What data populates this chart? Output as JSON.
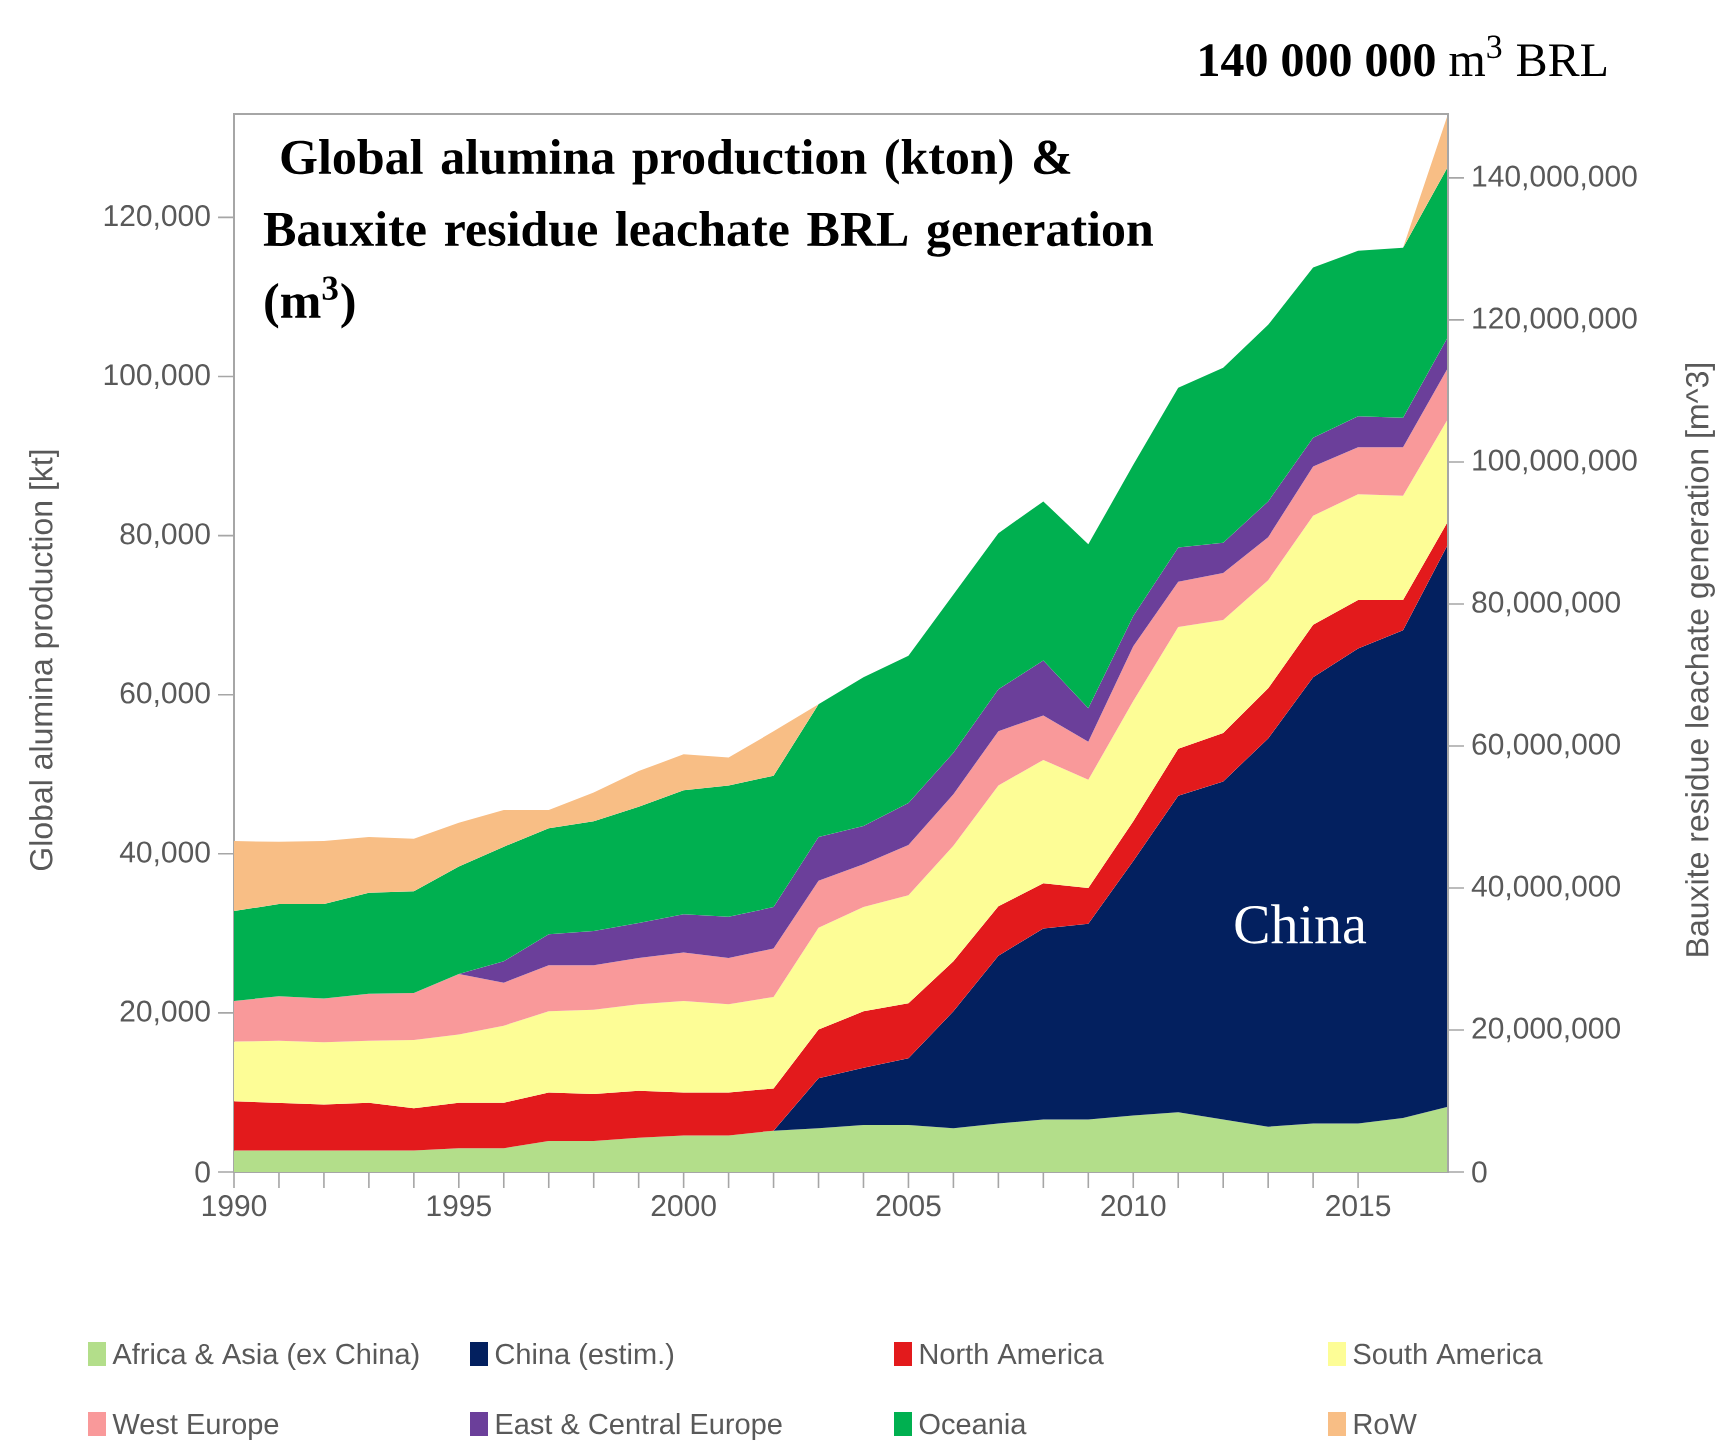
{
  "chart_data": {
    "type": "area",
    "stacked": true,
    "title": "Global alumina production (kton) & Bauxite residue leachate BRL generation (m$^{3}$)",
    "ylabel": "Global alumina production [kt]",
    "y2label": "Bauxite residue leachate generation [m^3]",
    "annotations": [
      "**140 000 000** m$^{3}$ BRL",
      "China"
    ],
    "x": [
      1990,
      1991,
      1992,
      1993,
      1994,
      1995,
      1996,
      1997,
      1998,
      1999,
      2000,
      2001,
      2002,
      2003,
      2004,
      2005,
      2006,
      2007,
      2008,
      2009,
      2010,
      2011,
      2012,
      2013,
      2014,
      2015,
      2016,
      2017
    ],
    "xlim": [
      1990,
      2017
    ],
    "xticks": [
      1990,
      1995,
      2000,
      2005,
      2010,
      2015
    ],
    "ylim": [
      0,
      133000
    ],
    "yticks": [
      0,
      {
        "value": 20000,
        "label": "20,000"
      },
      {
        "value": 40000,
        "label": "40,000"
      },
      {
        "value": 60000,
        "label": "60,000"
      },
      {
        "value": 80000,
        "label": "80,000"
      },
      {
        "value": 100000,
        "label": "100,000"
      },
      {
        "value": 120000,
        "label": "120,000"
      }
    ],
    "y2lim": [
      0,
      149000000
    ],
    "y2ticks": [
      0,
      {
        "value": 20000000,
        "label": "20,000,000"
      },
      {
        "value": 40000000,
        "label": "40,000,000"
      },
      {
        "value": 60000000,
        "label": "60,000,000"
      },
      {
        "value": 80000000,
        "label": "80,000,000"
      },
      {
        "value": 100000000,
        "label": "100,000,000"
      },
      {
        "value": 120000000,
        "label": "120,000,000"
      },
      {
        "value": 140000000,
        "label": "140,000,000"
      }
    ],
    "legend": "bottom",
    "series": [
      {
        "name": "Africa & Asia (ex China)",
        "color": "#b3de8a",
        "values": [
          2700,
          2700,
          2700,
          2700,
          2700,
          3000,
          3000,
          3900,
          3900,
          4300,
          4600,
          4600,
          5200,
          5500,
          5900,
          5900,
          5500,
          6100,
          6600,
          6600,
          7100,
          7500,
          6600,
          5700,
          6100,
          6100,
          6800,
          8200
        ]
      },
      {
        "name": "China (estim.)",
        "color": "#03205f",
        "values": [
          null,
          null,
          null,
          null,
          null,
          null,
          null,
          null,
          null,
          null,
          null,
          null,
          0,
          6300,
          7200,
          8400,
          14700,
          21100,
          24000,
          24600,
          32000,
          39800,
          42500,
          48800,
          56100,
          59700,
          61300,
          70700
        ]
      },
      {
        "name": "North America",
        "color": "#e31a1c",
        "values": [
          6200,
          6000,
          5800,
          6000,
          5300,
          5700,
          5700,
          6100,
          5900,
          5900,
          5400,
          5400,
          5300,
          6100,
          7100,
          6900,
          6300,
          6200,
          5700,
          4500,
          5000,
          5900,
          6100,
          6300,
          6600,
          6100,
          3800,
          2900
        ]
      },
      {
        "name": "South America",
        "color": "#fdfd96",
        "values": [
          7500,
          7800,
          7800,
          7800,
          8600,
          8600,
          9700,
          10200,
          10600,
          10900,
          11500,
          11100,
          11500,
          12800,
          13100,
          13600,
          14500,
          15200,
          15500,
          13600,
          15100,
          15300,
          14200,
          13600,
          13700,
          13300,
          13100,
          12900
        ]
      },
      {
        "name": "West Europe",
        "color": "#f9999a",
        "values": [
          5100,
          5600,
          5500,
          5900,
          5900,
          7600,
          5400,
          5800,
          5600,
          5800,
          6100,
          5800,
          6100,
          5900,
          5400,
          6300,
          6500,
          6800,
          5600,
          4800,
          6900,
          5700,
          5900,
          5400,
          6200,
          5900,
          6100,
          6400
        ]
      },
      {
        "name": "East & Central Europe",
        "color": "#6b3f9a",
        "values": [
          null,
          null,
          null,
          null,
          null,
          0,
          2700,
          3900,
          4300,
          4400,
          4800,
          5200,
          5200,
          5500,
          4800,
          5300,
          5200,
          5300,
          6900,
          4200,
          3800,
          4300,
          3800,
          4500,
          3600,
          3900,
          3700,
          3900
        ]
      },
      {
        "name": "Oceania",
        "color": "#00b050",
        "values": [
          11300,
          11600,
          11900,
          12700,
          12800,
          13500,
          14400,
          13300,
          13800,
          14600,
          15600,
          16500,
          16500,
          16700,
          18700,
          18500,
          19900,
          19600,
          20000,
          20600,
          19000,
          20100,
          22000,
          22200,
          21400,
          20800,
          21400,
          21400
        ]
      },
      {
        "name": "RoW",
        "color": "#f8be85",
        "values": [
          8800,
          7800,
          7900,
          7000,
          6600,
          5500,
          4600,
          2300,
          3600,
          4500,
          4500,
          3500,
          5600,
          0,
          0,
          0,
          0,
          0,
          0,
          0,
          0,
          0,
          0,
          0,
          0,
          0,
          0,
          6600
        ]
      }
    ]
  }
}
